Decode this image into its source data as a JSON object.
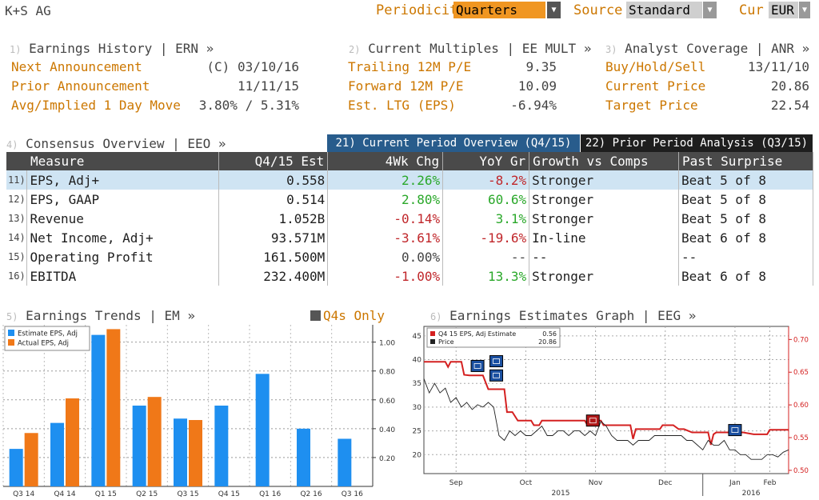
{
  "header": {
    "company": "K+S AG",
    "periodicity_label": "Periodicity",
    "periodicity_value": "Quarters",
    "source_label": "Source",
    "source_value": "Standard",
    "cur_label": "Cur",
    "cur_value": "EUR"
  },
  "ern": {
    "num": "1)",
    "title": "Earnings History | ERN »",
    "rows": [
      {
        "label": "Next Announcement",
        "value": "(C) 03/10/16"
      },
      {
        "label": "Prior Announcement",
        "value": "11/11/15"
      },
      {
        "label": "Avg/Implied 1 Day Move",
        "value": "3.80% / 5.31%"
      }
    ]
  },
  "mult": {
    "num": "2)",
    "title": "Current Multiples | EE MULT »",
    "rows": [
      {
        "label": "Trailing 12M P/E",
        "value": "9.35"
      },
      {
        "label": "Forward 12M P/E",
        "value": "10.09"
      },
      {
        "label": "Est. LTG (EPS)",
        "value": "-6.94%"
      }
    ]
  },
  "anr": {
    "num": "3)",
    "title": "Analyst Coverage | ANR »",
    "rows": [
      {
        "label": "Buy/Hold/Sell",
        "value": "13/11/10"
      },
      {
        "label": "Current Price",
        "value": "20.86"
      },
      {
        "label": "Target Price",
        "value": "22.54"
      }
    ]
  },
  "eeo": {
    "num": "4)",
    "title": "Consensus Overview | EEO »",
    "tab_current": "21) Current Period Overview (Q4/15)",
    "tab_prior": "22) Prior Period Analysis (Q3/15)",
    "headers": [
      "Measure",
      "Q4/15 Est",
      "4Wk Chg",
      "YoY Gr",
      "Growth vs Comps",
      "Past Surprise"
    ],
    "rows": [
      {
        "idx": "11)",
        "measure": "EPS, Adj+",
        "est": "0.558",
        "chg": "2.26%",
        "chg_c": "pos",
        "yoy": "-8.2%",
        "yoy_c": "neg",
        "growth": "Stronger",
        "surprise": "Beat 5 of 8"
      },
      {
        "idx": "12)",
        "measure": "EPS, GAAP",
        "est": "0.514",
        "chg": "2.80%",
        "chg_c": "pos",
        "yoy": "60.6%",
        "yoy_c": "pos",
        "growth": "Stronger",
        "surprise": "Beat 5 of 8"
      },
      {
        "idx": "13)",
        "measure": "Revenue",
        "est": "1.052B",
        "chg": "-0.14%",
        "chg_c": "neg",
        "yoy": "3.1%",
        "yoy_c": "pos",
        "growth": "Stronger",
        "surprise": "Beat 5 of 8"
      },
      {
        "idx": "14)",
        "measure": "Net Income, Adj+",
        "est": "93.571M",
        "chg": "-3.61%",
        "chg_c": "neg",
        "yoy": "-19.6%",
        "yoy_c": "neg",
        "growth": "In-line",
        "surprise": "Beat 6 of 8"
      },
      {
        "idx": "15)",
        "measure": "Operating Profit",
        "est": "161.500M",
        "chg": "0.00%",
        "chg_c": "neu",
        "yoy": "--",
        "yoy_c": "neu",
        "growth": "--",
        "surprise": "--"
      },
      {
        "idx": "16)",
        "measure": "EBITDA",
        "est": "232.400M",
        "chg": "-1.00%",
        "chg_c": "neg",
        "yoy": "13.3%",
        "yoy_c": "pos",
        "growth": "Stronger",
        "surprise": "Beat 6 of 8"
      }
    ]
  },
  "em": {
    "num": "5)",
    "title": "Earnings Trends | EM »",
    "q4_toggle": "Q4s Only"
  },
  "eeg": {
    "num": "6)",
    "title": "Earnings Estimates Graph | EEG »"
  },
  "colors": {
    "estimate": "#1e8ff0",
    "actual": "#f07818",
    "estimate_line": "#d42020",
    "price_line": "#222222",
    "amber": "#cc7700"
  },
  "chart_data": [
    {
      "type": "bar",
      "categories": [
        "Q3 14",
        "Q4 14",
        "Q1 15",
        "Q2 15",
        "Q3 15",
        "Q4 15",
        "Q1 16",
        "Q2 16",
        "Q3 16"
      ],
      "series": [
        {
          "name": "Estimate EPS, Adj",
          "values": [
            0.26,
            0.44,
            1.05,
            0.56,
            0.47,
            0.56,
            0.78,
            0.4,
            0.33
          ]
        },
        {
          "name": "Actual EPS, Adj",
          "values": [
            0.37,
            0.61,
            1.09,
            0.62,
            0.46,
            null,
            null,
            null,
            null
          ]
        }
      ],
      "y_ticks": [
        "0.20",
        "0.40",
        "0.60",
        "0.80",
        "1.00"
      ],
      "ylim": [
        0.0,
        1.12
      ],
      "legend": "top-left"
    },
    {
      "type": "line",
      "x_labels": [
        "Sep",
        "Oct",
        "Nov",
        "Dec",
        "Jan",
        "Feb"
      ],
      "year_labels": [
        "2015",
        "2016"
      ],
      "legend_rows": [
        {
          "label": "Q4 15 EPS, Adj Estimate",
          "value": "0.56"
        },
        {
          "label": "Price",
          "value": "20.86"
        }
      ],
      "left_axis": {
        "ticks": [
          "20",
          "25",
          "30",
          "35",
          "40",
          "45"
        ],
        "range": [
          16,
          47
        ]
      },
      "right_axis": {
        "ticks": [
          "0.50",
          "0.55",
          "0.60",
          "0.65",
          "0.70"
        ],
        "range": [
          0.495,
          0.72
        ]
      },
      "series": [
        {
          "name": "Q4 15 EPS, Adj Estimate",
          "axis": "right",
          "x": [
            0,
            8,
            9,
            10,
            14,
            15,
            17,
            22,
            24,
            30,
            31,
            33,
            35,
            40,
            41,
            43,
            44,
            60,
            61,
            63,
            64,
            66,
            67,
            77,
            78,
            79,
            80,
            88,
            89,
            93,
            95,
            97,
            100,
            106,
            107,
            108,
            109,
            119,
            123,
            128,
            129,
            136
          ],
          "y": [
            0.666,
            0.666,
            0.658,
            0.666,
            0.666,
            0.646,
            0.645,
            0.645,
            0.624,
            0.624,
            0.589,
            0.589,
            0.576,
            0.576,
            0.569,
            0.569,
            0.576,
            0.576,
            0.569,
            0.569,
            0.576,
            0.576,
            0.569,
            0.569,
            0.548,
            0.563,
            0.563,
            0.563,
            0.569,
            0.569,
            0.563,
            0.563,
            0.558,
            0.558,
            0.539,
            0.555,
            0.558,
            0.558,
            0.555,
            0.555,
            0.562,
            0.562
          ]
        },
        {
          "name": "Price",
          "axis": "left",
          "x": [
            0,
            2,
            4,
            6,
            8,
            10,
            12,
            14,
            16,
            18,
            20,
            22,
            24,
            26,
            28,
            30,
            32,
            34,
            36,
            38,
            40,
            42,
            44,
            46,
            48,
            50,
            52,
            54,
            56,
            58,
            60,
            62,
            64,
            66,
            68,
            70,
            72,
            74,
            76,
            78,
            80,
            82,
            84,
            86,
            88,
            90,
            92,
            94,
            96,
            98,
            100,
            102,
            104,
            106,
            108,
            110,
            112,
            114,
            116,
            118,
            120,
            122,
            124,
            126,
            128,
            130,
            132,
            134,
            136
          ],
          "y": [
            36,
            33,
            35,
            33,
            34,
            31,
            32,
            30,
            31,
            29.5,
            30.5,
            30,
            31,
            30,
            24,
            23,
            25,
            24,
            25,
            24,
            24,
            25,
            26,
            24,
            24,
            25,
            25,
            24,
            25,
            25,
            24,
            25,
            24,
            27,
            26,
            24,
            23,
            23,
            23,
            22,
            23,
            23,
            23,
            24,
            24,
            24,
            24,
            24,
            24,
            23,
            23,
            22,
            21,
            23,
            22,
            22,
            23,
            21,
            21,
            20,
            20,
            19,
            19,
            19,
            20,
            20,
            19.5,
            20.5,
            21
          ]
        }
      ]
    }
  ]
}
